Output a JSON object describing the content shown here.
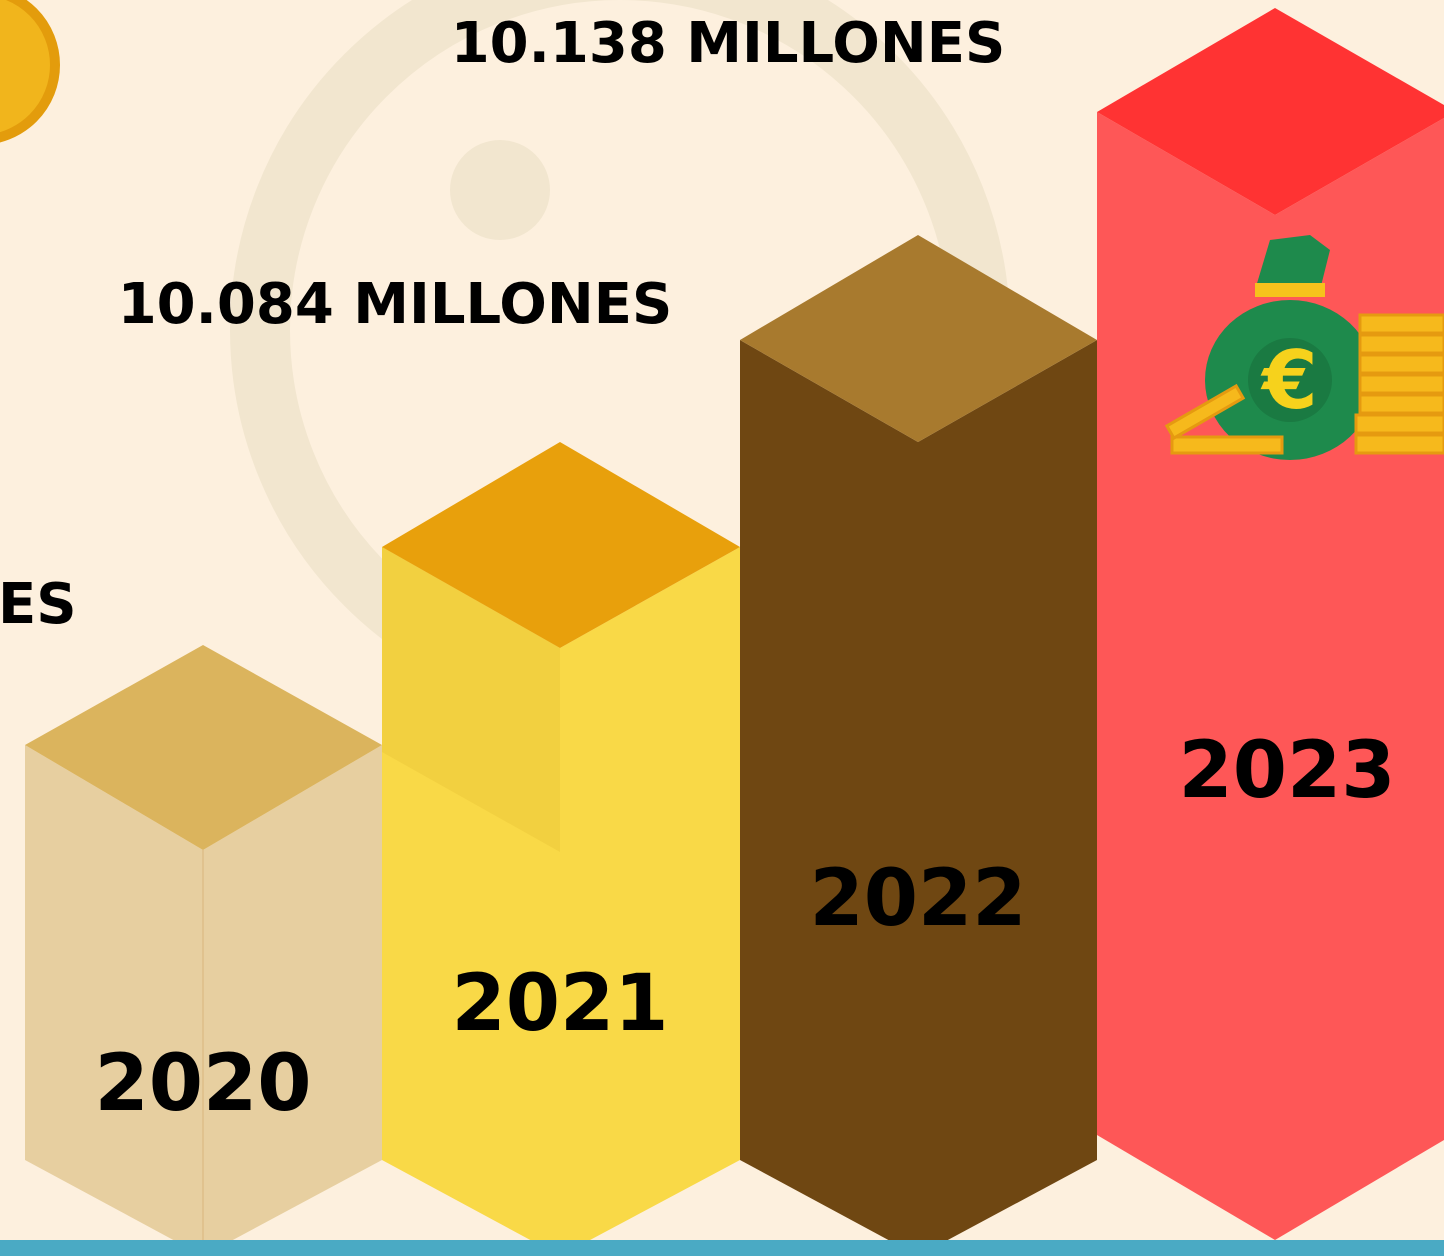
{
  "amount_labels": [
    "10.138 MILLONES",
    "10.084 MILLONES",
    "ES"
  ],
  "years": [
    "2020",
    "2021",
    "2022",
    "2023"
  ]
}
